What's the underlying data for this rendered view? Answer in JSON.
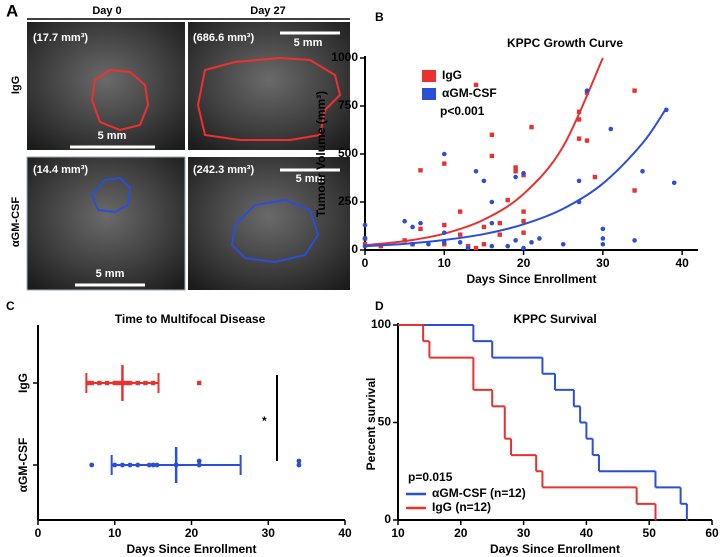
{
  "panel_a": {
    "label": "A",
    "columns": [
      "Day 0",
      "Day 27"
    ],
    "rows": [
      "IgG",
      "αGM-CSF"
    ],
    "images": [
      {
        "volume": "(17.7 mm³)",
        "scale": "5 mm"
      },
      {
        "volume": "(686.6 mm³)",
        "scale": "5 mm"
      },
      {
        "volume": "(14.4 mm³)",
        "scale": "5 mm"
      },
      {
        "volume": "(242.3 mm³)",
        "scale": "5 mm"
      }
    ]
  },
  "chart_data": [
    {
      "type": "scatter",
      "panel": "B",
      "title": "KPPC Growth Curve",
      "x_label": "Days Since Enrollment",
      "y_label": "Tumour Volume (mm³)",
      "annotation": "p<0.001",
      "xlim": [
        0,
        42
      ],
      "ylim": [
        0,
        1000
      ],
      "xticks": [
        0,
        10,
        20,
        30,
        40
      ],
      "yticks": [
        0,
        250,
        500,
        750,
        1000
      ],
      "series": [
        {
          "name": "IgG",
          "color": "#e8322f",
          "x": [
            0,
            0,
            2,
            5,
            6,
            7,
            7,
            10,
            10,
            10,
            12,
            12,
            13,
            14,
            14,
            15,
            15,
            16,
            16,
            17,
            17,
            18,
            19,
            19,
            20,
            20,
            20,
            20,
            21,
            27,
            27,
            27,
            28,
            28,
            29,
            34,
            34
          ],
          "values": [
            30,
            60,
            20,
            50,
            30,
            415,
            110,
            450,
            30,
            130,
            80,
            200,
            20,
            10,
            860,
            120,
            30,
            600,
            490,
            80,
            140,
            260,
            430,
            410,
            390,
            200,
            150,
            90,
            640,
            680,
            720,
            580,
            570,
            820,
            380,
            830,
            310
          ],
          "fit": {
            "x": [
              0,
              5,
              10,
              15,
              20,
              25,
              30
            ],
            "values": [
              25,
              46,
              85,
              158,
              292,
              540,
              1000
            ]
          }
        },
        {
          "name": "αGM-CSF",
          "color": "#2a4fd6",
          "x": [
            0,
            0,
            0,
            5,
            6,
            6,
            7,
            8,
            10,
            10,
            10,
            12,
            13,
            14,
            15,
            16,
            16,
            16,
            18,
            19,
            19,
            20,
            20,
            21,
            22,
            25,
            27,
            27,
            28,
            30,
            30,
            30,
            31,
            34,
            35,
            38,
            39
          ],
          "values": [
            130,
            60,
            20,
            150,
            30,
            120,
            140,
            30,
            500,
            40,
            90,
            40,
            10,
            410,
            360,
            250,
            140,
            20,
            20,
            380,
            50,
            400,
            10,
            40,
            60,
            30,
            360,
            250,
            830,
            110,
            60,
            30,
            630,
            50,
            410,
            730,
            350
          ],
          "fit": {
            "x": [
              0,
              5,
              10,
              15,
              20,
              25,
              30,
              35,
              38
            ],
            "values": [
              20,
              32,
              52,
              83,
              134,
              215,
              346,
              556,
              738
            ]
          }
        }
      ]
    },
    {
      "type": "strip",
      "panel": "C",
      "title": "Time to Multifocal Disease",
      "x_label": "Days Since Enrollment",
      "annotation": "*",
      "xlim": [
        0,
        40
      ],
      "xticks": [
        0,
        10,
        20,
        30,
        40
      ],
      "series": [
        {
          "name": "IgG",
          "color": "#e8322f",
          "values": [
            6.5,
            7,
            8,
            9,
            10,
            10.5,
            11,
            11.5,
            12,
            13,
            14,
            15,
            21
          ],
          "mean": 11,
          "sd": 4.7
        },
        {
          "name": "αGM-CSF",
          "color": "#2a4fd6",
          "values": [
            7,
            10,
            11,
            12,
            13,
            14.5,
            15,
            15.5,
            18,
            21,
            21,
            34,
            34
          ],
          "mean": 18,
          "sd": 8.4
        }
      ]
    },
    {
      "type": "line",
      "step": true,
      "panel": "D",
      "title": "KPPC Survival",
      "x_label": "Days Since Enrollment",
      "y_label": "Percent survival",
      "annotation": "p=0.015",
      "xlim": [
        10,
        60
      ],
      "ylim": [
        0,
        100
      ],
      "xticks": [
        10,
        20,
        30,
        40,
        50,
        60
      ],
      "yticks": [
        0,
        50,
        100
      ],
      "series": [
        {
          "name": "αGM-CSF (n=12)",
          "color": "#2a4fd6",
          "x": [
            10,
            22,
            25,
            33,
            35,
            38,
            39,
            40,
            41,
            42,
            51,
            55,
            56
          ],
          "values": [
            100,
            91.7,
            83.3,
            75,
            66.7,
            58.3,
            50,
            41.7,
            33.3,
            25,
            16.7,
            8.3,
            0
          ]
        },
        {
          "name": "IgG (n=12)",
          "color": "#e8322f",
          "x": [
            10,
            14,
            15,
            22,
            25,
            27,
            28,
            32,
            33,
            48,
            51
          ],
          "values": [
            100,
            91.7,
            83.3,
            66.7,
            58.3,
            41.7,
            33.3,
            25,
            16.7,
            8.3,
            0
          ]
        }
      ]
    }
  ]
}
